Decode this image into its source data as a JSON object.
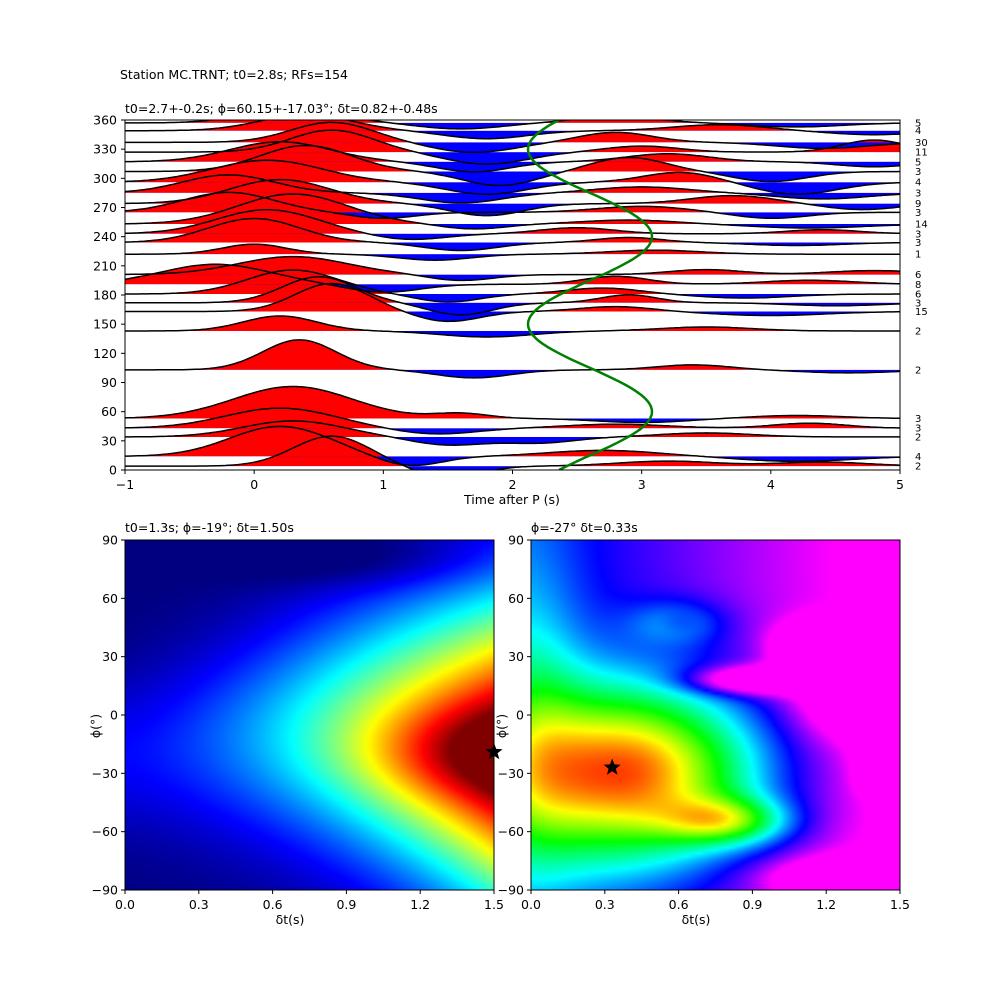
{
  "figure": {
    "suptitle": "Station MC.TRNT; t0=2.8s; RFs=154"
  },
  "chart_data": [
    {
      "type": "line",
      "title": "t0=2.7+-0.2s; ϕ=60.15+-17.03°; δt=0.82+-0.48s",
      "xlabel": "Time after P (s)",
      "ylabel": "",
      "xlim": [
        -1,
        5
      ],
      "ylim": [
        0,
        360
      ],
      "xticks": [
        -1,
        0,
        1,
        2,
        3,
        4,
        5
      ],
      "yticks": [
        0,
        30,
        60,
        90,
        120,
        150,
        180,
        210,
        240,
        270,
        300,
        330,
        360
      ],
      "positive_fill": "#ff0000",
      "negative_fill": "#0000ff",
      "right_labels": [
        {
          "baz": 357,
          "count": "5"
        },
        {
          "baz": 349,
          "count": "4"
        },
        {
          "baz": 337,
          "count": "30"
        },
        {
          "baz": 327,
          "count": "11"
        },
        {
          "baz": 317,
          "count": "5"
        },
        {
          "baz": 307,
          "count": "3"
        },
        {
          "baz": 296,
          "count": "4"
        },
        {
          "baz": 285,
          "count": "3"
        },
        {
          "baz": 274,
          "count": "9"
        },
        {
          "baz": 265,
          "count": "3"
        },
        {
          "baz": 253,
          "count": "14"
        },
        {
          "baz": 243,
          "count": "3"
        },
        {
          "baz": 234,
          "count": "3"
        },
        {
          "baz": 222,
          "count": "1"
        },
        {
          "baz": 201,
          "count": "6"
        },
        {
          "baz": 191,
          "count": "8"
        },
        {
          "baz": 181,
          "count": "6"
        },
        {
          "baz": 172,
          "count": "3"
        },
        {
          "baz": 163,
          "count": "15"
        },
        {
          "baz": 143,
          "count": "2"
        },
        {
          "baz": 103,
          "count": "2"
        },
        {
          "baz": 53,
          "count": "3"
        },
        {
          "baz": 43,
          "count": "3"
        },
        {
          "baz": 34,
          "count": "2"
        },
        {
          "baz": 14,
          "count": "4"
        },
        {
          "baz": 4,
          "count": "2"
        }
      ],
      "traces": [
        {
          "baz": 4,
          "wavelets": [
            [
              0.6,
              0.42,
              30
            ],
            [
              1.5,
              0.35,
              -12
            ],
            [
              3.2,
              0.55,
              5
            ],
            [
              4.4,
              0.5,
              4
            ]
          ]
        },
        {
          "baz": 14,
          "wavelets": [
            [
              0.2,
              0.55,
              30
            ],
            [
              1.2,
              0.35,
              -10
            ],
            [
              2.7,
              0.6,
              6
            ],
            [
              4.2,
              0.6,
              -5
            ]
          ]
        },
        {
          "baz": 34,
          "wavelets": [
            [
              0.3,
              0.55,
              16
            ],
            [
              1.5,
              0.4,
              -8
            ],
            [
              2.2,
              0.4,
              -6
            ],
            [
              3.5,
              0.5,
              4
            ]
          ]
        },
        {
          "baz": 43,
          "wavelets": [
            [
              0.2,
              0.6,
              20
            ],
            [
              1.4,
              0.45,
              -6
            ],
            [
              2.8,
              0.55,
              4
            ],
            [
              4.3,
              0.4,
              5
            ]
          ]
        },
        {
          "baz": 53,
          "wavelets": [
            [
              0.3,
              0.65,
              32
            ],
            [
              1.6,
              0.3,
              5
            ],
            [
              3.0,
              0.5,
              -4
            ],
            [
              4.2,
              0.5,
              3
            ]
          ]
        },
        {
          "baz": 103,
          "wavelets": [
            [
              0.35,
              0.4,
              30
            ],
            [
              1.7,
              0.4,
              -8
            ],
            [
              3.4,
              0.4,
              5
            ],
            [
              4.6,
              0.5,
              -3
            ]
          ]
        },
        {
          "baz": 143,
          "wavelets": [
            [
              0.2,
              0.4,
              15
            ],
            [
              1.8,
              0.5,
              -6
            ],
            [
              3.5,
              0.5,
              4
            ]
          ]
        },
        {
          "baz": 163,
          "wavelets": [
            [
              0.6,
              0.4,
              28
            ],
            [
              1.5,
              0.35,
              -10
            ],
            [
              2.8,
              0.4,
              5
            ],
            [
              4.0,
              0.6,
              -4
            ]
          ]
        },
        {
          "baz": 172,
          "wavelets": [
            [
              0.5,
              0.4,
              26
            ],
            [
              1.6,
              0.35,
              -12
            ],
            [
              2.9,
              0.3,
              8
            ],
            [
              4.5,
              0.5,
              -3
            ]
          ]
        },
        {
          "baz": 181,
          "wavelets": [
            [
              0.3,
              0.5,
              24
            ],
            [
              1.5,
              0.35,
              -8
            ],
            [
              2.7,
              0.4,
              6
            ],
            [
              3.8,
              0.5,
              -4
            ]
          ]
        },
        {
          "baz": 191,
          "wavelets": [
            [
              -0.3,
              0.6,
              20
            ],
            [
              1.0,
              0.4,
              -8
            ],
            [
              2.8,
              0.35,
              8
            ],
            [
              4.3,
              0.5,
              4
            ]
          ]
        },
        {
          "baz": 201,
          "wavelets": [
            [
              0.3,
              0.6,
              18
            ],
            [
              1.6,
              0.35,
              -6
            ],
            [
              3.5,
              0.4,
              5
            ],
            [
              4.8,
              0.5,
              4
            ]
          ]
        },
        {
          "baz": 222,
          "wavelets": [
            [
              0.0,
              0.35,
              10
            ],
            [
              1.4,
              0.4,
              -6
            ],
            [
              3.1,
              0.5,
              4
            ]
          ]
        },
        {
          "baz": 234,
          "wavelets": [
            [
              0.0,
              0.5,
              24
            ],
            [
              1.6,
              0.4,
              -8
            ],
            [
              2.9,
              0.35,
              5
            ],
            [
              4.2,
              0.5,
              -3
            ]
          ]
        },
        {
          "baz": 243,
          "wavelets": [
            [
              0.1,
              0.55,
              24
            ],
            [
              1.2,
              0.4,
              -6
            ],
            [
              2.5,
              0.4,
              6
            ],
            [
              4.4,
              0.4,
              4
            ]
          ]
        },
        {
          "baz": 253,
          "wavelets": [
            [
              0.3,
              0.6,
              30
            ],
            [
              1.7,
              0.35,
              -5
            ],
            [
              2.9,
              0.5,
              4
            ],
            [
              4.3,
              0.6,
              -4
            ]
          ]
        },
        {
          "baz": 265,
          "wavelets": [
            [
              -0.2,
              0.5,
              20
            ],
            [
              1.0,
              0.35,
              -6
            ],
            [
              3.0,
              0.5,
              6
            ],
            [
              4.0,
              0.4,
              -6
            ]
          ]
        },
        {
          "baz": 274,
          "wavelets": [
            [
              0.2,
              0.55,
              24
            ],
            [
              1.8,
              0.4,
              -12
            ],
            [
              3.7,
              0.45,
              8
            ],
            [
              4.7,
              0.4,
              -6
            ]
          ]
        },
        {
          "baz": 285,
          "wavelets": [
            [
              -0.2,
              0.5,
              18
            ],
            [
              1.6,
              0.45,
              -10
            ],
            [
              3.0,
              0.5,
              6
            ],
            [
              4.4,
              0.5,
              -6
            ]
          ]
        },
        {
          "baz": 296,
          "wavelets": [
            [
              0.1,
              0.6,
              22
            ],
            [
              1.8,
              0.45,
              -12
            ],
            [
              3.3,
              0.4,
              10
            ],
            [
              4.2,
              0.45,
              -12
            ]
          ]
        },
        {
          "baz": 307,
          "wavelets": [
            [
              0.4,
              0.5,
              26
            ],
            [
              1.9,
              0.4,
              -14
            ],
            [
              2.9,
              0.4,
              14
            ],
            [
              4.0,
              0.4,
              -10
            ]
          ]
        },
        {
          "baz": 317,
          "wavelets": [
            [
              0.2,
              0.55,
              20
            ],
            [
              1.7,
              0.4,
              -10
            ],
            [
              3.2,
              0.45,
              8
            ],
            [
              4.8,
              0.4,
              -5
            ]
          ]
        },
        {
          "baz": 327,
          "wavelets": [
            [
              0.6,
              0.45,
              22
            ],
            [
              1.8,
              0.45,
              -12
            ],
            [
              3.0,
              0.4,
              6
            ],
            [
              4.8,
              0.35,
              12
            ]
          ]
        },
        {
          "baz": 337,
          "wavelets": [
            [
              0.6,
              0.45,
              20
            ],
            [
              1.7,
              0.45,
              -10
            ],
            [
              2.8,
              0.4,
              10
            ],
            [
              4.4,
              0.5,
              -6
            ]
          ]
        },
        {
          "baz": 349,
          "wavelets": [
            [
              0.4,
              0.5,
              16
            ],
            [
              1.8,
              0.45,
              -8
            ],
            [
              3.6,
              0.5,
              6
            ],
            [
              4.8,
              0.5,
              -4
            ]
          ]
        },
        {
          "baz": 357,
          "wavelets": [
            [
              0.3,
              0.5,
              14
            ],
            [
              1.6,
              0.45,
              -6
            ],
            [
              2.8,
              0.45,
              6
            ],
            [
              4.2,
              0.5,
              -4
            ]
          ]
        }
      ],
      "curve": {
        "color": "#008000",
        "center": 2.6,
        "amplitude": 0.48,
        "phase_deg": 60
      }
    },
    {
      "type": "heatmap",
      "title": "t0=1.3s; ϕ=-19°; δt=1.50s",
      "xlabel": "δt(s)",
      "ylabel": "ϕ(°)",
      "xlim": [
        0.0,
        1.5
      ],
      "ylim": [
        -90,
        90
      ],
      "xticks": [
        "0.0",
        "0.3",
        "0.6",
        "0.9",
        "1.2",
        "1.5"
      ],
      "yticks": [
        "90",
        "60",
        "30",
        "0",
        "−30",
        "−60",
        "−90"
      ],
      "colormap": "jet",
      "best": {
        "dt": 1.5,
        "phi": -19
      }
    },
    {
      "type": "heatmap",
      "title": "ϕ=-27° δt=0.33s",
      "xlabel": "δt(s)",
      "ylabel": "ϕ(°)",
      "xlim": [
        0.0,
        1.5
      ],
      "ylim": [
        -90,
        90
      ],
      "xticks": [
        "0.0",
        "0.3",
        "0.6",
        "0.9",
        "1.2",
        "1.5"
      ],
      "yticks": [
        "90",
        "60",
        "30",
        "0",
        "−30",
        "−60",
        "−90"
      ],
      "colormap": "gist_rainbow",
      "best": {
        "dt": 0.33,
        "phi": -27
      }
    }
  ]
}
